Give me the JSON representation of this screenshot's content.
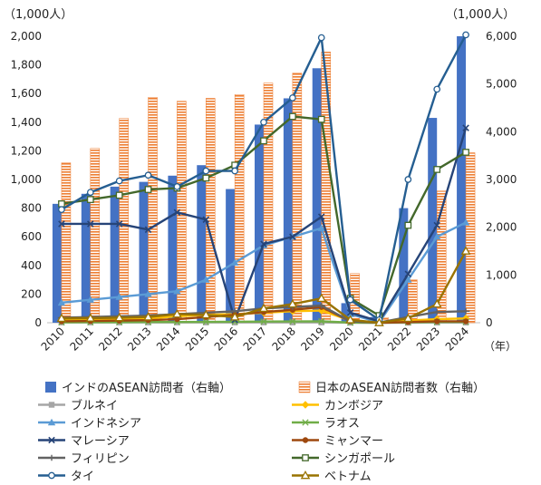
{
  "chart_data": {
    "type": "bar",
    "categories": [
      "2010",
      "2011",
      "2012",
      "2013",
      "2014",
      "2015",
      "2016",
      "2017",
      "2018",
      "2019",
      "2020",
      "2021",
      "2022",
      "2023",
      "2024"
    ],
    "left_axis": {
      "unit_label": "（1,000人）",
      "ylim": [
        0,
        2000
      ],
      "ticks": [
        "0",
        "200",
        "400",
        "600",
        "800",
        "1,000",
        "1,200",
        "1,400",
        "1,600",
        "1,800",
        "2,000"
      ]
    },
    "right_axis": {
      "unit_label": "（1,000人）",
      "ylim": [
        0,
        6000
      ],
      "ticks": [
        "0",
        "1,000",
        "2,000",
        "3,000",
        "4,000",
        "5,000",
        "6,000"
      ]
    },
    "x_unit": "（年）",
    "grid": false,
    "legend_position": "bottom",
    "bar_series": [
      {
        "name": "インドのASEAN訪問者（右軸）",
        "color": "#4472c4",
        "pattern": "solid",
        "values": [
          2490,
          2700,
          2850,
          2950,
          3080,
          3300,
          2800,
          4150,
          4700,
          5330,
          410,
          120,
          2400,
          4290,
          6000
        ]
      },
      {
        "name": "日本のASEAN訪問者数（右軸）",
        "color": "#ed7d31",
        "pattern": "stripes",
        "values": [
          3350,
          3650,
          4280,
          4720,
          4640,
          4700,
          4780,
          5020,
          5230,
          5670,
          1030,
          110,
          900,
          2760,
          3560
        ]
      }
    ],
    "line_series": [
      {
        "name": "ブルネイ",
        "color": "#a5a5a5",
        "marker": "square",
        "values": [
          2,
          2,
          2,
          2,
          2,
          2,
          2,
          2,
          2,
          2,
          0,
          0,
          0,
          1,
          1
        ]
      },
      {
        "name": "カンボジア",
        "color": "#ffc000",
        "marker": "diamond",
        "values": [
          20,
          22,
          25,
          30,
          45,
          55,
          60,
          70,
          80,
          85,
          15,
          1,
          15,
          25,
          30
        ]
      },
      {
        "name": "インドネシア",
        "color": "#5b9bd5",
        "marker": "triangle",
        "values": [
          140,
          160,
          180,
          200,
          220,
          300,
          420,
          540,
          600,
          660,
          60,
          2,
          300,
          600,
          700
        ]
      },
      {
        "name": "ラオス",
        "color": "#70ad47",
        "marker": "cross",
        "values": [
          3,
          4,
          4,
          5,
          5,
          6,
          7,
          8,
          9,
          10,
          1,
          0,
          3,
          5,
          6
        ]
      },
      {
        "name": "マレーシア",
        "color": "#264478",
        "marker": "x",
        "values": [
          690,
          690,
          690,
          650,
          770,
          720,
          20,
          550,
          600,
          740,
          70,
          10,
          340,
          680,
          1360
        ]
      },
      {
        "name": "ミャンマー",
        "color": "#9e480e",
        "marker": "circle",
        "values": [
          10,
          12,
          15,
          18,
          25,
          40,
          55,
          75,
          90,
          110,
          10,
          0,
          5,
          10,
          10
        ]
      },
      {
        "name": "フィリピン",
        "color": "#636363",
        "marker": "plus",
        "values": [
          35,
          40,
          45,
          50,
          60,
          70,
          80,
          100,
          110,
          120,
          10,
          1,
          40,
          75,
          80
        ]
      },
      {
        "name": "シンガポール",
        "color": "#43682b",
        "marker": "square-open",
        "values": [
          830,
          860,
          890,
          930,
          940,
          1010,
          1100,
          1270,
          1440,
          1420,
          170,
          50,
          680,
          1070,
          1190
        ]
      },
      {
        "name": "タイ",
        "color": "#255e91",
        "marker": "circle-open",
        "values": [
          790,
          910,
          990,
          1030,
          950,
          1060,
          1060,
          1400,
          1570,
          1990,
          160,
          20,
          1000,
          1630,
          2010
        ]
      },
      {
        "name": "ベトナム",
        "color": "#997300",
        "marker": "triangle-open",
        "values": [
          30,
          32,
          35,
          40,
          60,
          55,
          40,
          100,
          130,
          170,
          20,
          0,
          30,
          130,
          500
        ]
      }
    ]
  }
}
